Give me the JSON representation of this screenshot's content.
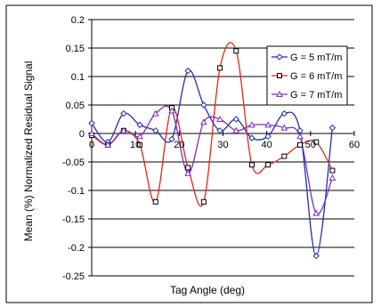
{
  "chart_data": {
    "type": "line",
    "title": "",
    "xlabel": "Tag Angle (deg)",
    "ylabel": "Mean (%) Normalized Residual Signal",
    "xlim": [
      0,
      60
    ],
    "ylim": [
      -0.25,
      0.2
    ],
    "x_ticks": [
      0,
      10,
      20,
      30,
      40,
      50,
      60
    ],
    "y_ticks": [
      0.2,
      0.15,
      0.1,
      0.05,
      0,
      -0.05,
      -0.1,
      -0.15,
      -0.2,
      -0.25
    ],
    "x_tick_labels": [
      "0",
      "10",
      "20",
      "30",
      "40",
      "50",
      "60"
    ],
    "y_tick_labels": [
      "0.2",
      "0.15",
      "0.1",
      "0.05",
      "0",
      "-0.05",
      "-0.1",
      "-0.15",
      "-0.2",
      "-0.25"
    ],
    "grid": "horizontal",
    "legend_position": "top-right",
    "series": [
      {
        "name": "G = 5 mT/m",
        "color": "#1f2fb0",
        "marker": "diamond",
        "x": [
          0,
          3.7,
          7.3,
          11,
          14.6,
          18.3,
          22,
          25.6,
          29.3,
          33,
          36.6,
          40.3,
          44,
          47.6,
          51.3,
          55
        ],
        "y": [
          0.018,
          -0.015,
          0.035,
          0.015,
          0.005,
          -0.01,
          0.11,
          0.05,
          0.005,
          0.025,
          -0.008,
          -0.005,
          0.035,
          0.005,
          -0.215,
          0.01
        ]
      },
      {
        "name": "G = 6 mT/m",
        "color": "#e8241c",
        "marker": "square",
        "x": [
          0,
          3.7,
          7.3,
          11,
          14.6,
          18.3,
          22,
          25.6,
          29.3,
          33,
          36.6,
          40.3,
          44,
          47.6,
          51.3,
          55
        ],
        "y": [
          -0.003,
          -0.02,
          0.005,
          -0.02,
          -0.12,
          0.045,
          -0.06,
          -0.12,
          0.115,
          0.145,
          -0.055,
          -0.055,
          -0.04,
          -0.02,
          -0.015,
          -0.065
        ]
      },
      {
        "name": "G = 7 mT/m",
        "color": "#7b2fc0",
        "marker": "triangle",
        "x": [
          0,
          3.7,
          7.3,
          11,
          14.6,
          18.3,
          22,
          25.6,
          29.3,
          33,
          36.6,
          40.3,
          44,
          47.6,
          51.3,
          55
        ],
        "y": [
          0.0,
          -0.02,
          0.005,
          -0.005,
          0.035,
          0.04,
          -0.07,
          0.02,
          0.025,
          0.005,
          0.015,
          0.015,
          0.01,
          -0.005,
          -0.14,
          -0.078
        ]
      }
    ]
  }
}
